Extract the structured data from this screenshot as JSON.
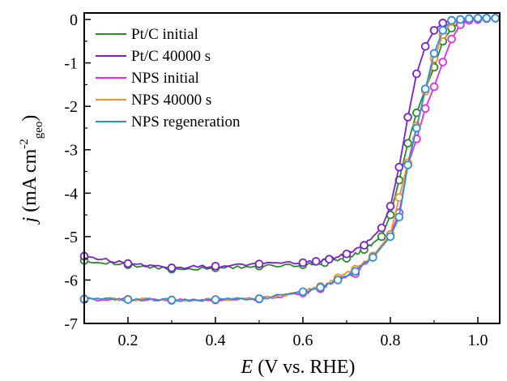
{
  "chart_data": {
    "type": "line",
    "xlabel_symbol": "E",
    "xlabel_rest": " (V vs. RHE)",
    "ylabel_symbol": "j",
    "ylabel_rest": " (mA cm",
    "ylabel_sup": "-2",
    "ylabel_sub": "geo",
    "ylabel_close": ")",
    "xlim": [
      0.1,
      1.05
    ],
    "ylim": [
      -7,
      0.15
    ],
    "xticks": [
      0.2,
      0.4,
      0.6,
      0.8,
      1.0
    ],
    "xtick_labels": [
      "0.2",
      "0.4",
      "0.6",
      "0.8",
      "1.0"
    ],
    "yticks": [
      0,
      -1,
      -2,
      -3,
      -4,
      -5,
      -6,
      -7
    ],
    "ytick_labels": [
      "0",
      "-1",
      "-2",
      "-3",
      "-4",
      "-5",
      "-6",
      "-7"
    ],
    "grid": false,
    "legend_position": "top-left",
    "series": [
      {
        "name": "Pt/C initial",
        "color": "#2a8a2a",
        "x": [
          0.1,
          0.2,
          0.3,
          0.4,
          0.5,
          0.6,
          0.65,
          0.7,
          0.74,
          0.78,
          0.8,
          0.82,
          0.84,
          0.86,
          0.88,
          0.9,
          0.92,
          0.94,
          0.96,
          0.98,
          1.0,
          1.02,
          1.04
        ],
        "y": [
          -5.55,
          -5.65,
          -5.75,
          -5.72,
          -5.68,
          -5.65,
          -5.6,
          -5.5,
          -5.3,
          -5.0,
          -4.5,
          -3.7,
          -2.85,
          -2.15,
          -1.6,
          -1.1,
          -0.5,
          -0.2,
          -0.06,
          0.0,
          0.02,
          0.03,
          0.03
        ]
      },
      {
        "name": "Pt/C 40000 s",
        "color": "#7b20d0",
        "x": [
          0.1,
          0.2,
          0.3,
          0.4,
          0.5,
          0.6,
          0.63,
          0.66,
          0.7,
          0.74,
          0.78,
          0.8,
          0.82,
          0.84,
          0.86,
          0.88,
          0.9,
          0.92,
          0.94,
          0.96,
          0.98,
          1.0,
          1.02,
          1.04
        ],
        "y": [
          -5.45,
          -5.62,
          -5.72,
          -5.68,
          -5.63,
          -5.6,
          -5.57,
          -5.52,
          -5.4,
          -5.2,
          -4.8,
          -4.3,
          -3.4,
          -2.25,
          -1.25,
          -0.62,
          -0.25,
          -0.08,
          -0.02,
          0.0,
          0.02,
          0.03,
          0.03,
          0.03
        ]
      },
      {
        "name": "NPS initial",
        "color": "#e22ce8",
        "x": [
          0.1,
          0.2,
          0.3,
          0.4,
          0.5,
          0.6,
          0.64,
          0.68,
          0.72,
          0.76,
          0.8,
          0.82,
          0.84,
          0.86,
          0.88,
          0.9,
          0.92,
          0.94,
          0.96,
          0.98,
          1.0,
          1.02,
          1.04
        ],
        "y": [
          -6.45,
          -6.45,
          -6.47,
          -6.46,
          -6.44,
          -6.3,
          -6.2,
          -6.0,
          -5.85,
          -5.45,
          -4.95,
          -4.45,
          -3.35,
          -2.75,
          -2.05,
          -1.55,
          -0.98,
          -0.45,
          -0.12,
          -0.02,
          0.0,
          0.02,
          0.03
        ]
      },
      {
        "name": "NPS 40000 s",
        "color": "#f39224",
        "x": [
          0.1,
          0.2,
          0.3,
          0.4,
          0.5,
          0.6,
          0.64,
          0.68,
          0.72,
          0.76,
          0.8,
          0.82,
          0.84,
          0.86,
          0.88,
          0.9,
          0.92,
          0.94,
          0.96,
          0.98,
          1.0,
          1.02,
          1.04
        ],
        "y": [
          -6.43,
          -6.44,
          -6.46,
          -6.45,
          -6.43,
          -6.28,
          -6.15,
          -5.95,
          -5.75,
          -5.45,
          -4.95,
          -4.1,
          -3.3,
          -2.45,
          -1.65,
          -0.9,
          -0.35,
          -0.05,
          0.0,
          0.02,
          0.03,
          0.03,
          0.03
        ]
      },
      {
        "name": "NPS regeneration",
        "color": "#2e8fe0",
        "x": [
          0.1,
          0.2,
          0.3,
          0.4,
          0.5,
          0.6,
          0.64,
          0.68,
          0.72,
          0.76,
          0.8,
          0.82,
          0.84,
          0.86,
          0.88,
          0.9,
          0.92,
          0.94,
          0.96,
          0.98,
          1.0,
          1.02,
          1.04
        ],
        "y": [
          -6.44,
          -6.45,
          -6.46,
          -6.45,
          -6.43,
          -6.27,
          -6.17,
          -6.0,
          -5.8,
          -5.48,
          -5.0,
          -4.55,
          -3.35,
          -2.5,
          -1.6,
          -0.78,
          -0.25,
          -0.02,
          0.0,
          0.02,
          0.03,
          0.03,
          0.03
        ]
      }
    ]
  }
}
